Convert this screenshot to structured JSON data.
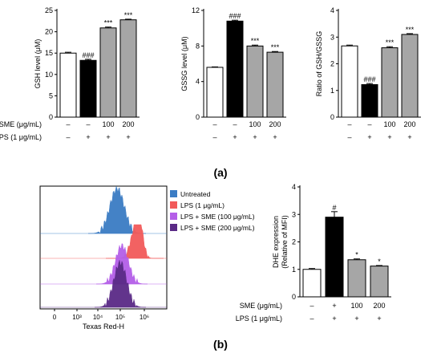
{
  "panel_labels": {
    "a": "(a)",
    "b": "(b)"
  },
  "colors": {
    "untreated": "#ffffff",
    "lps": "#000000",
    "sme": "#a6a6a6",
    "flow_untreated": "#3b7cc4",
    "flow_lps": "#f25a5a",
    "flow_sme100": "#b45ee8",
    "flow_sme200": "#5a2a86"
  },
  "conditions": {
    "sme_label": "SME (μg/mL)",
    "lps_label": "LPS (1 μg/mL)",
    "sme_a": [
      "–",
      "–",
      "100",
      "200"
    ],
    "lps_a": [
      "–",
      "+",
      "+",
      "+"
    ],
    "sme_b": [
      "–",
      "+",
      "100",
      "200"
    ],
    "lps_b": [
      "–",
      "+",
      "+",
      "+"
    ]
  },
  "chart_data": [
    {
      "type": "bar",
      "panel": "a",
      "ylabel": "GSH level (μM)",
      "ylim": [
        0,
        25
      ],
      "yticks": [
        "0",
        "5",
        "10",
        "15",
        "20",
        "25"
      ],
      "values": [
        15.0,
        13.3,
        20.9,
        22.8
      ],
      "errors": [
        0.2,
        0.25,
        0.2,
        0.15
      ],
      "annotations": [
        "",
        "###",
        "***",
        "***"
      ]
    },
    {
      "type": "bar",
      "panel": "a",
      "ylabel": "GSSG level (μM)",
      "ylim": [
        0,
        12
      ],
      "yticks": [
        "0",
        "4",
        "8",
        "12"
      ],
      "values": [
        5.6,
        10.8,
        8.0,
        7.3
      ],
      "errors": [
        0.05,
        0.1,
        0.1,
        0.08
      ],
      "annotations": [
        "",
        "###",
        "***",
        "***"
      ]
    },
    {
      "type": "bar",
      "panel": "a",
      "ylabel": "Ratio of GSH/GSSG",
      "ylim": [
        0,
        4
      ],
      "yticks": [
        "0",
        "1",
        "2",
        "3",
        "4"
      ],
      "values": [
        2.67,
        1.22,
        2.6,
        3.1
      ],
      "errors": [
        0.03,
        0.04,
        0.04,
        0.03
      ],
      "annotations": [
        "",
        "###",
        "***",
        "***"
      ]
    },
    {
      "type": "bar",
      "panel": "b",
      "ylabel": "DHE expression (Relative of MFI)",
      "ylim": [
        0,
        4
      ],
      "yticks": [
        "0",
        "1",
        "2",
        "3",
        "4"
      ],
      "values": [
        1.0,
        2.9,
        1.35,
        1.12
      ],
      "errors": [
        0.03,
        0.2,
        0.03,
        0.02
      ],
      "annotations": [
        "",
        "#",
        "*",
        "*"
      ]
    }
  ],
  "flow": {
    "xlabel": "Texas Red-H",
    "xticks": [
      "0",
      "10³",
      "10⁴",
      "10⁵",
      "10⁶"
    ],
    "legend": [
      "Untreated",
      "LPS (1 μg/mL)",
      "LPS + SME (100 μg/mL)",
      "LPS + SME (200 μg/mL)"
    ]
  }
}
